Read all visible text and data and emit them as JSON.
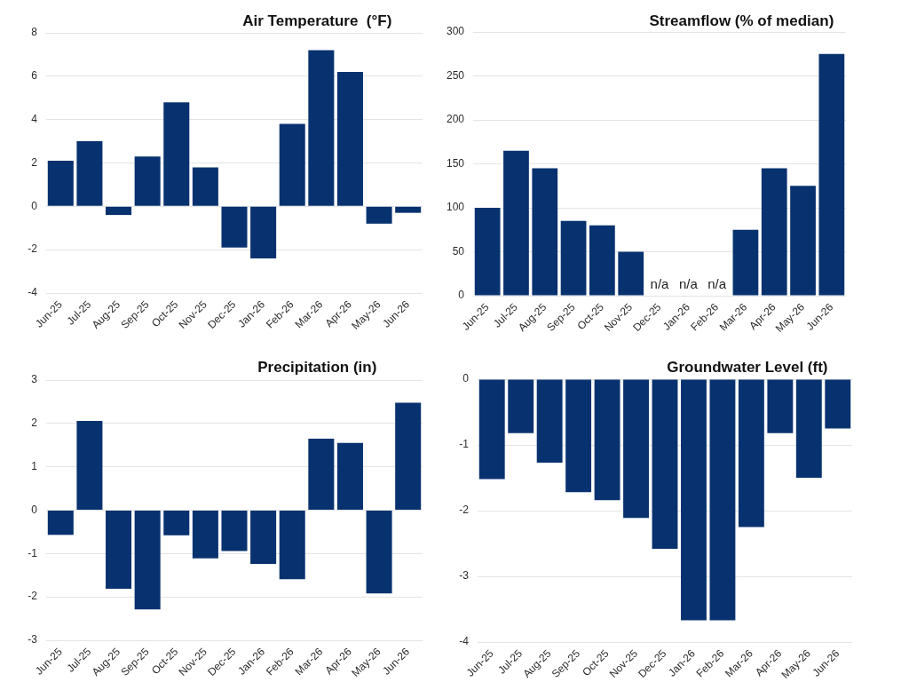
{
  "chart_data": [
    {
      "type": "bar",
      "title": "Air Temperature  (°F)",
      "categories": [
        "Jun-25",
        "Jul-25",
        "Aug-25",
        "Sep-25",
        "Oct-25",
        "Nov-25",
        "Dec-25",
        "Jan-26",
        "Feb-26",
        "Mar-26",
        "Apr-26",
        "May-26",
        "Jun-26"
      ],
      "values": [
        2.1,
        3.0,
        -0.4,
        2.3,
        4.8,
        1.8,
        -1.9,
        -2.4,
        3.8,
        7.2,
        6.2,
        -0.8,
        -0.3
      ],
      "color": "#08326f",
      "ylim": [
        -4,
        8
      ],
      "yticks": [
        -4,
        -2,
        0,
        2,
        4,
        6,
        8
      ],
      "grid": "y"
    },
    {
      "type": "bar",
      "title": "Streamflow (% of median)",
      "categories": [
        "Jun-25",
        "Jul-25",
        "Aug-25",
        "Sep-25",
        "Oct-25",
        "Nov-25",
        "Dec-25",
        "Jan-26",
        "Feb-26",
        "Mar-26",
        "Apr-26",
        "May-26",
        "Jun-26"
      ],
      "values": [
        100,
        165,
        145,
        85,
        80,
        50,
        null,
        null,
        null,
        75,
        145,
        125,
        275
      ],
      "value_labels": [
        null,
        null,
        null,
        null,
        null,
        null,
        "n/a",
        "n/a",
        "n/a",
        null,
        null,
        null,
        null
      ],
      "color": "#08326f",
      "ylim": [
        0,
        300
      ],
      "yticks": [
        0,
        50,
        100,
        150,
        200,
        250,
        300
      ],
      "grid": "y"
    },
    {
      "type": "bar",
      "title": "Precipitation (in)",
      "categories": [
        "Jun-25",
        "Jul-25",
        "Aug-25",
        "Sep-25",
        "Oct-25",
        "Nov-25",
        "Dec-25",
        "Jan-26",
        "Feb-26",
        "Mar-26",
        "Apr-26",
        "May-26",
        "Jun-26"
      ],
      "values": [
        -0.57,
        2.06,
        -1.81,
        -2.29,
        -0.58,
        -1.11,
        -0.94,
        -1.24,
        -1.59,
        1.65,
        1.55,
        -1.92,
        2.48
      ],
      "color": "#08326f",
      "ylim": [
        -3,
        3
      ],
      "yticks": [
        -3,
        -2,
        -1,
        0,
        1,
        2,
        3
      ],
      "grid": "y"
    },
    {
      "type": "bar",
      "title": "Groundwater Level (ft)",
      "categories": [
        "Jun-25",
        "Jul-25",
        "Aug-25",
        "Sep-25",
        "Oct-25",
        "Nov-25",
        "Dec-25",
        "Jan-26",
        "Feb-26",
        "Mar-26",
        "Apr-26",
        "May-26",
        "Jun-26"
      ],
      "values": [
        -1.52,
        -0.82,
        -1.27,
        -1.72,
        -1.84,
        -2.11,
        -2.58,
        -3.67,
        -3.67,
        -2.25,
        -0.82,
        -1.5,
        -0.75
      ],
      "color": "#08326f",
      "ylim": [
        -4,
        0
      ],
      "yticks": [
        -4,
        -3,
        -2,
        -1,
        0
      ],
      "grid": "y"
    }
  ]
}
